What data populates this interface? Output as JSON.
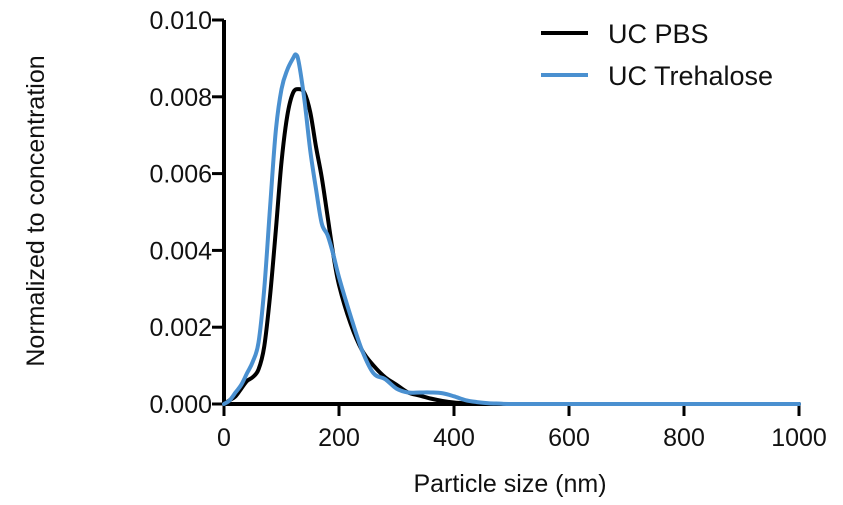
{
  "chart_data": {
    "type": "line",
    "title": "",
    "xlabel": "Particle size (nm)",
    "ylabel": "Normalized to concentration",
    "xlim": [
      0,
      1000
    ],
    "ylim": [
      0,
      0.01
    ],
    "xticks": [
      0,
      200,
      400,
      600,
      800,
      1000
    ],
    "xtick_labels": [
      "0",
      "200",
      "400",
      "600",
      "800",
      "1000"
    ],
    "yticks": [
      0,
      0.002,
      0.004,
      0.006,
      0.008,
      0.01
    ],
    "ytick_labels": [
      "0.000",
      "0.002",
      "0.004",
      "0.006",
      "0.008",
      "0.010"
    ],
    "grid": false,
    "legend_position": "top-right",
    "series": [
      {
        "name": "UC PBS",
        "color": "#000000",
        "x": [
          0,
          10,
          20,
          30,
          40,
          50,
          60,
          70,
          80,
          90,
          100,
          110,
          120,
          130,
          140,
          150,
          160,
          170,
          180,
          190,
          200,
          220,
          240,
          260,
          280,
          300,
          320,
          340,
          360,
          380,
          400,
          420,
          440,
          460,
          480,
          500,
          600,
          700,
          800,
          900,
          1000
        ],
        "y": [
          0,
          0.0001,
          0.0002,
          0.0004,
          0.0006,
          0.0007,
          0.0009,
          0.0015,
          0.0028,
          0.0045,
          0.0063,
          0.0075,
          0.0081,
          0.0082,
          0.0081,
          0.0076,
          0.0067,
          0.0059,
          0.0049,
          0.0039,
          0.0031,
          0.0021,
          0.0014,
          0.001,
          0.0007,
          0.0005,
          0.0003,
          0.00022,
          0.00014,
          8e-05,
          4e-05,
          2e-05,
          1e-05,
          0,
          0,
          0,
          0,
          0,
          0,
          0,
          0
        ]
      },
      {
        "name": "UC Trehalose",
        "color": "#4a90d0",
        "x": [
          0,
          10,
          20,
          30,
          40,
          50,
          60,
          70,
          80,
          90,
          100,
          110,
          120,
          125,
          130,
          140,
          150,
          160,
          170,
          180,
          190,
          200,
          220,
          240,
          260,
          280,
          300,
          320,
          340,
          360,
          380,
          400,
          420,
          440,
          460,
          480,
          500,
          600,
          700,
          800,
          900,
          1000
        ],
        "y": [
          0,
          0.0001,
          0.0003,
          0.0005,
          0.0008,
          0.0011,
          0.0016,
          0.003,
          0.0051,
          0.0071,
          0.0082,
          0.0087,
          0.009,
          0.0091,
          0.0089,
          0.0079,
          0.0066,
          0.0056,
          0.0047,
          0.0044,
          0.0039,
          0.0033,
          0.0023,
          0.0014,
          0.0008,
          0.00065,
          0.0004,
          0.0003,
          0.0003,
          0.0003,
          0.00028,
          0.0002,
          0.0001,
          5e-05,
          2e-05,
          1e-05,
          0,
          0,
          0,
          0,
          0,
          0
        ]
      }
    ]
  }
}
